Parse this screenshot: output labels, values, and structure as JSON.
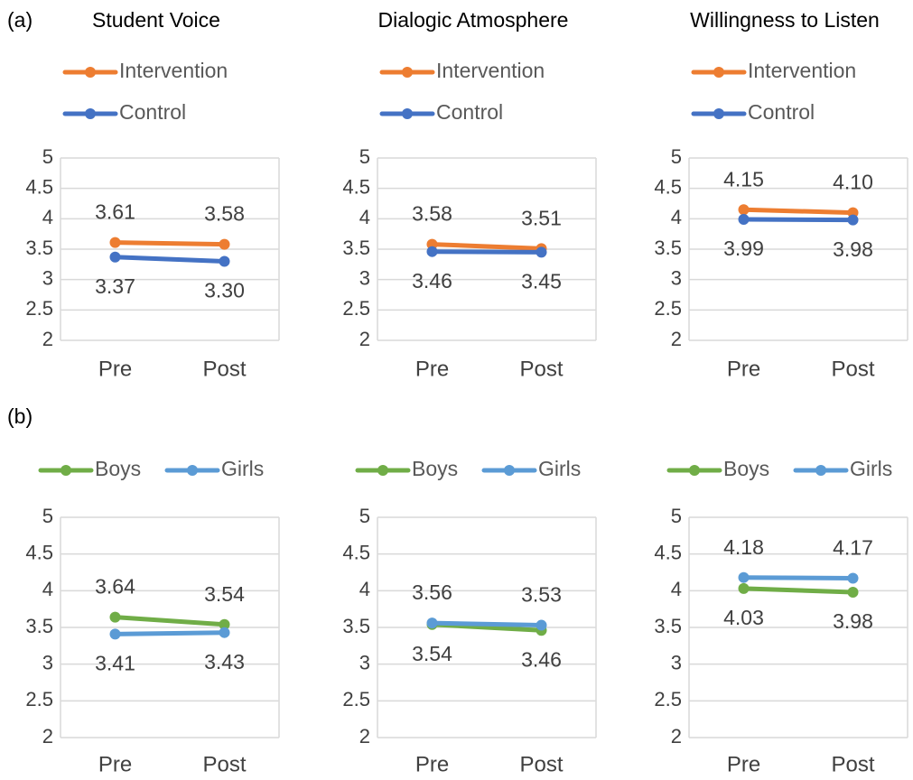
{
  "panel_labels": [
    "(a)",
    "(b)"
  ],
  "chart_data": [
    {
      "type": "line",
      "title": "Student Voice",
      "categories": [
        "Pre",
        "Post"
      ],
      "ylim": [
        2,
        5
      ],
      "yticks": [
        2,
        2.5,
        3,
        3.5,
        4,
        4.5,
        5
      ],
      "grid": true,
      "series": [
        {
          "name": "Intervention",
          "color": "#ED7D31",
          "values": [
            3.61,
            3.58
          ],
          "value_labels": [
            "3.61",
            "3.58"
          ]
        },
        {
          "name": "Control",
          "color": "#4472C4",
          "values": [
            3.37,
            3.3
          ],
          "value_labels": [
            "3.37",
            "3.30"
          ]
        }
      ]
    },
    {
      "type": "line",
      "title": "Dialogic Atmosphere",
      "categories": [
        "Pre",
        "Post"
      ],
      "ylim": [
        2,
        5
      ],
      "yticks": [
        2,
        2.5,
        3,
        3.5,
        4,
        4.5,
        5
      ],
      "grid": true,
      "series": [
        {
          "name": "Intervention",
          "color": "#ED7D31",
          "values": [
            3.58,
            3.51
          ],
          "value_labels": [
            "3.58",
            "3.51"
          ]
        },
        {
          "name": "Control",
          "color": "#4472C4",
          "values": [
            3.46,
            3.45
          ],
          "value_labels": [
            "3.46",
            "3.45"
          ]
        }
      ]
    },
    {
      "type": "line",
      "title": "Willingness to Listen",
      "categories": [
        "Pre",
        "Post"
      ],
      "ylim": [
        2,
        5
      ],
      "yticks": [
        2,
        2.5,
        3,
        3.5,
        4,
        4.5,
        5
      ],
      "grid": true,
      "series": [
        {
          "name": "Intervention",
          "color": "#ED7D31",
          "values": [
            4.15,
            4.1
          ],
          "value_labels": [
            "4.15",
            "4.10"
          ]
        },
        {
          "name": "Control",
          "color": "#4472C4",
          "values": [
            3.99,
            3.98
          ],
          "value_labels": [
            "3.99",
            "3.98"
          ]
        }
      ]
    },
    {
      "type": "line",
      "categories": [
        "Pre",
        "Post"
      ],
      "ylim": [
        2,
        5
      ],
      "yticks": [
        2,
        2.5,
        3,
        3.5,
        4,
        4.5,
        5
      ],
      "grid": true,
      "series": [
        {
          "name": "Boys",
          "color": "#70AD47",
          "values": [
            3.64,
            3.54
          ],
          "value_labels": [
            "3.64",
            "3.54"
          ]
        },
        {
          "name": "Girls",
          "color": "#5B9BD5",
          "values": [
            3.41,
            3.43
          ],
          "value_labels": [
            "3.41",
            "3.43"
          ]
        }
      ]
    },
    {
      "type": "line",
      "categories": [
        "Pre",
        "Post"
      ],
      "ylim": [
        2,
        5
      ],
      "yticks": [
        2,
        2.5,
        3,
        3.5,
        4,
        4.5,
        5
      ],
      "grid": true,
      "series": [
        {
          "name": "Boys",
          "color": "#70AD47",
          "values": [
            3.54,
            3.46
          ],
          "value_labels": [
            "3.54",
            "3.46"
          ]
        },
        {
          "name": "Girls",
          "color": "#5B9BD5",
          "values": [
            3.56,
            3.53
          ],
          "value_labels": [
            "3.56",
            "3.53"
          ]
        }
      ]
    },
    {
      "type": "line",
      "categories": [
        "Pre",
        "Post"
      ],
      "ylim": [
        2,
        5
      ],
      "yticks": [
        2,
        2.5,
        3,
        3.5,
        4,
        4.5,
        5
      ],
      "grid": true,
      "series": [
        {
          "name": "Boys",
          "color": "#70AD47",
          "values": [
            4.03,
            3.98
          ],
          "value_labels": [
            "4.03",
            "3.98"
          ]
        },
        {
          "name": "Girls",
          "color": "#5B9BD5",
          "values": [
            4.18,
            4.17
          ],
          "value_labels": [
            "4.18",
            "4.17"
          ]
        }
      ]
    }
  ]
}
